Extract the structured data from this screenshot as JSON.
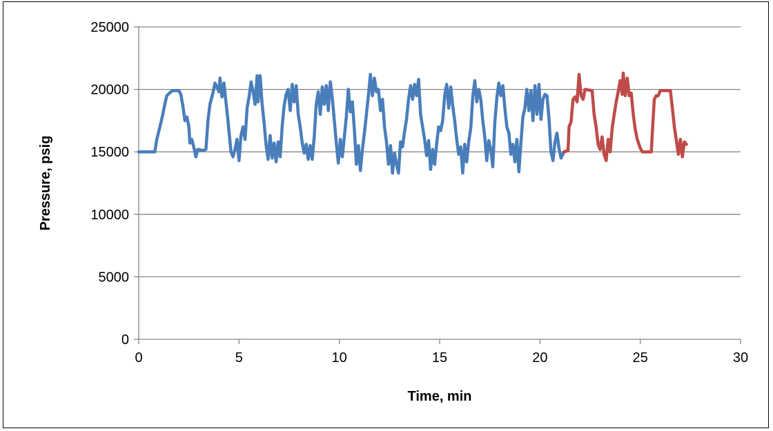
{
  "chart_data": {
    "type": "line",
    "title": "",
    "xlabel": "Time, min",
    "ylabel": "Pressure, psig",
    "xlim": [
      0,
      30
    ],
    "ylim": [
      0,
      25000
    ],
    "x_ticks": [
      0,
      5,
      10,
      15,
      20,
      25,
      30
    ],
    "x_tick_labels": [
      "0",
      "5",
      "10",
      "15",
      "20",
      "25",
      "30"
    ],
    "y_ticks": [
      0,
      5000,
      10000,
      15000,
      20000,
      25000
    ],
    "y_tick_labels": [
      "0",
      "5000",
      "10000",
      "15000",
      "20000",
      "25000"
    ],
    "grid": "horizontal major gridlines",
    "legend": "none",
    "colors": {
      "series_1": "#4a7ebb",
      "series_2": "#be4b48",
      "grid": "#868686",
      "axis": "#868686"
    },
    "series": [
      {
        "color": "#4a7ebb",
        "points": [
          [
            0.0,
            15000
          ],
          [
            0.4,
            15000
          ],
          [
            0.8,
            15000
          ],
          [
            0.9,
            16000
          ],
          [
            1.1,
            17300
          ],
          [
            1.2,
            18000
          ],
          [
            1.3,
            18800
          ],
          [
            1.4,
            19500
          ],
          [
            1.6,
            19800
          ],
          [
            1.7,
            19900
          ],
          [
            2.0,
            19900
          ],
          [
            2.1,
            19600
          ],
          [
            2.2,
            18700
          ],
          [
            2.3,
            17500
          ],
          [
            2.4,
            17800
          ],
          [
            2.5,
            17000
          ],
          [
            2.55,
            15700
          ],
          [
            2.65,
            16000
          ],
          [
            2.8,
            15000
          ],
          [
            2.85,
            14600
          ],
          [
            2.95,
            15200
          ],
          [
            3.2,
            15100
          ],
          [
            3.35,
            15200
          ],
          [
            3.45,
            17500
          ],
          [
            3.55,
            18800
          ],
          [
            3.7,
            19700
          ],
          [
            3.8,
            20500
          ],
          [
            3.9,
            20200
          ],
          [
            4.0,
            19800
          ],
          [
            4.05,
            20900
          ],
          [
            4.15,
            19400
          ],
          [
            4.25,
            20500
          ],
          [
            4.35,
            19000
          ],
          [
            4.45,
            17500
          ],
          [
            4.6,
            15000
          ],
          [
            4.7,
            14600
          ],
          [
            4.8,
            15200
          ],
          [
            4.9,
            16000
          ],
          [
            5.0,
            14300
          ],
          [
            5.1,
            16300
          ],
          [
            5.2,
            17000
          ],
          [
            5.3,
            16000
          ],
          [
            5.4,
            18500
          ],
          [
            5.5,
            19400
          ],
          [
            5.6,
            20600
          ],
          [
            5.7,
            19800
          ],
          [
            5.8,
            18800
          ],
          [
            5.9,
            21100
          ],
          [
            5.95,
            19000
          ],
          [
            6.05,
            21100
          ],
          [
            6.15,
            18800
          ],
          [
            6.25,
            17300
          ],
          [
            6.35,
            15500
          ],
          [
            6.45,
            14400
          ],
          [
            6.55,
            16300
          ],
          [
            6.65,
            14500
          ],
          [
            6.75,
            15700
          ],
          [
            6.85,
            14200
          ],
          [
            6.95,
            15800
          ],
          [
            7.05,
            14600
          ],
          [
            7.15,
            17000
          ],
          [
            7.25,
            18700
          ],
          [
            7.35,
            19600
          ],
          [
            7.45,
            20000
          ],
          [
            7.55,
            18300
          ],
          [
            7.65,
            20400
          ],
          [
            7.75,
            19000
          ],
          [
            7.85,
            20300
          ],
          [
            7.95,
            18000
          ],
          [
            8.05,
            17000
          ],
          [
            8.15,
            15700
          ],
          [
            8.25,
            14900
          ],
          [
            8.35,
            15600
          ],
          [
            8.45,
            14400
          ],
          [
            8.55,
            15500
          ],
          [
            8.65,
            14400
          ],
          [
            8.75,
            16200
          ],
          [
            8.85,
            18800
          ],
          [
            8.95,
            19800
          ],
          [
            9.05,
            18000
          ],
          [
            9.15,
            20200
          ],
          [
            9.25,
            18800
          ],
          [
            9.35,
            20300
          ],
          [
            9.45,
            18300
          ],
          [
            9.55,
            20600
          ],
          [
            9.65,
            19300
          ],
          [
            9.75,
            17500
          ],
          [
            9.85,
            15700
          ],
          [
            9.95,
            14100
          ],
          [
            10.05,
            16000
          ],
          [
            10.15,
            14600
          ],
          [
            10.25,
            16200
          ],
          [
            10.35,
            17800
          ],
          [
            10.45,
            20000
          ],
          [
            10.55,
            18200
          ],
          [
            10.65,
            19000
          ],
          [
            10.75,
            16700
          ],
          [
            10.85,
            14000
          ],
          [
            10.95,
            15500
          ],
          [
            11.05,
            13500
          ],
          [
            11.15,
            15200
          ],
          [
            11.25,
            16500
          ],
          [
            11.35,
            18000
          ],
          [
            11.45,
            19500
          ],
          [
            11.55,
            21200
          ],
          [
            11.65,
            19500
          ],
          [
            11.75,
            20900
          ],
          [
            11.85,
            19800
          ],
          [
            11.95,
            20000
          ],
          [
            12.05,
            18300
          ],
          [
            12.15,
            19200
          ],
          [
            12.25,
            17000
          ],
          [
            12.35,
            15800
          ],
          [
            12.45,
            14000
          ],
          [
            12.55,
            15500
          ],
          [
            12.65,
            13300
          ],
          [
            12.75,
            14900
          ],
          [
            12.85,
            14000
          ],
          [
            12.95,
            13300
          ],
          [
            13.05,
            15800
          ],
          [
            13.15,
            15400
          ],
          [
            13.25,
            16600
          ],
          [
            13.35,
            17600
          ],
          [
            13.45,
            19200
          ],
          [
            13.55,
            20300
          ],
          [
            13.65,
            19200
          ],
          [
            13.75,
            20400
          ],
          [
            13.85,
            19500
          ],
          [
            13.95,
            20800
          ],
          [
            14.05,
            18000
          ],
          [
            14.15,
            17000
          ],
          [
            14.25,
            16000
          ],
          [
            14.35,
            14700
          ],
          [
            14.45,
            15900
          ],
          [
            14.55,
            13600
          ],
          [
            14.65,
            15200
          ],
          [
            14.75,
            14000
          ],
          [
            14.85,
            15600
          ],
          [
            14.95,
            17000
          ],
          [
            15.05,
            16700
          ],
          [
            15.15,
            17500
          ],
          [
            15.25,
            19500
          ],
          [
            15.35,
            20400
          ],
          [
            15.45,
            18500
          ],
          [
            15.55,
            20200
          ],
          [
            15.65,
            18700
          ],
          [
            15.75,
            17500
          ],
          [
            15.85,
            16000
          ],
          [
            15.95,
            14800
          ],
          [
            16.05,
            15400
          ],
          [
            16.15,
            13300
          ],
          [
            16.25,
            15600
          ],
          [
            16.35,
            14200
          ],
          [
            16.45,
            15800
          ],
          [
            16.55,
            16900
          ],
          [
            16.65,
            19400
          ],
          [
            16.75,
            20700
          ],
          [
            16.85,
            19000
          ],
          [
            16.95,
            20000
          ],
          [
            17.05,
            19200
          ],
          [
            17.15,
            17500
          ],
          [
            17.25,
            16200
          ],
          [
            17.35,
            14300
          ],
          [
            17.45,
            15900
          ],
          [
            17.55,
            15200
          ],
          [
            17.65,
            13800
          ],
          [
            17.75,
            17300
          ],
          [
            17.85,
            19300
          ],
          [
            17.95,
            20500
          ],
          [
            18.05,
            19500
          ],
          [
            18.15,
            20300
          ],
          [
            18.25,
            18500
          ],
          [
            18.35,
            17000
          ],
          [
            18.45,
            16500
          ],
          [
            18.55,
            14800
          ],
          [
            18.65,
            15600
          ],
          [
            18.75,
            14200
          ],
          [
            18.85,
            16000
          ],
          [
            18.95,
            13400
          ],
          [
            19.05,
            15700
          ],
          [
            19.15,
            17800
          ],
          [
            19.25,
            18500
          ],
          [
            19.35,
            20000
          ],
          [
            19.45,
            18300
          ],
          [
            19.55,
            19900
          ],
          [
            19.65,
            17500
          ],
          [
            19.75,
            20300
          ],
          [
            19.85,
            18000
          ],
          [
            19.95,
            20400
          ],
          [
            20.05,
            17600
          ],
          [
            20.15,
            19200
          ],
          [
            20.25,
            19600
          ],
          [
            20.35,
            19500
          ],
          [
            20.45,
            17700
          ],
          [
            20.55,
            15000
          ],
          [
            20.65,
            14300
          ],
          [
            20.75,
            15800
          ],
          [
            20.85,
            16500
          ],
          [
            20.95,
            15300
          ],
          [
            21.05,
            14500
          ],
          [
            21.2,
            15000
          ]
        ]
      },
      {
        "color": "#be4b48",
        "points": [
          [
            21.2,
            15000
          ],
          [
            21.4,
            15100
          ],
          [
            21.45,
            17000
          ],
          [
            21.55,
            17400
          ],
          [
            21.65,
            19200
          ],
          [
            21.75,
            19400
          ],
          [
            21.85,
            19000
          ],
          [
            21.95,
            21200
          ],
          [
            22.05,
            19500
          ],
          [
            22.15,
            19200
          ],
          [
            22.25,
            20000
          ],
          [
            22.6,
            19900
          ],
          [
            22.7,
            18000
          ],
          [
            22.8,
            17000
          ],
          [
            22.9,
            15600
          ],
          [
            23.0,
            15200
          ],
          [
            23.1,
            16200
          ],
          [
            23.2,
            14800
          ],
          [
            23.3,
            14300
          ],
          [
            23.4,
            16000
          ],
          [
            23.5,
            15000
          ],
          [
            23.6,
            16900
          ],
          [
            23.7,
            18000
          ],
          [
            23.8,
            19000
          ],
          [
            23.9,
            19800
          ],
          [
            24.0,
            20700
          ],
          [
            24.1,
            19600
          ],
          [
            24.15,
            21300
          ],
          [
            24.25,
            19500
          ],
          [
            24.35,
            20900
          ],
          [
            24.45,
            19500
          ],
          [
            24.55,
            19700
          ],
          [
            24.65,
            18000
          ],
          [
            24.75,
            16800
          ],
          [
            24.85,
            16000
          ],
          [
            25.0,
            15300
          ],
          [
            25.1,
            15000
          ],
          [
            25.4,
            15000
          ],
          [
            25.55,
            15000
          ],
          [
            25.6,
            16500
          ],
          [
            25.7,
            19200
          ],
          [
            25.8,
            19500
          ],
          [
            25.9,
            19500
          ],
          [
            26.0,
            19900
          ],
          [
            26.5,
            19900
          ],
          [
            26.6,
            18500
          ],
          [
            26.7,
            17000
          ],
          [
            26.8,
            15900
          ],
          [
            26.9,
            14800
          ],
          [
            27.0,
            16000
          ],
          [
            27.1,
            14600
          ],
          [
            27.2,
            15800
          ],
          [
            27.3,
            15600
          ]
        ]
      }
    ]
  }
}
